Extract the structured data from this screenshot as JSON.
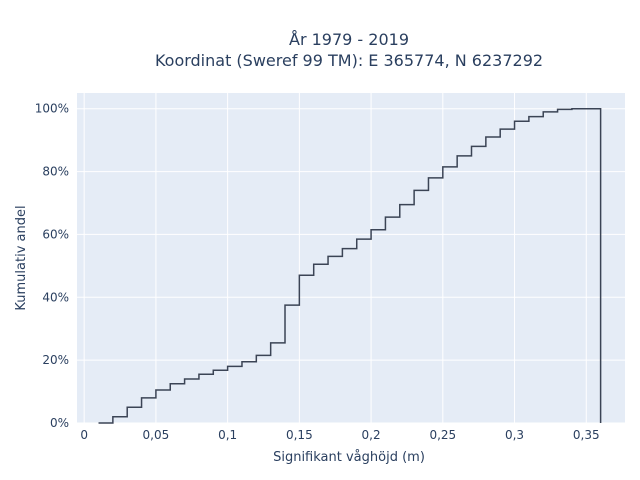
{
  "chart_data": {
    "type": "line",
    "title_line1": "År 1979 - 2019",
    "title_line2": "Koordinat (Sweref 99 TM): E 365774, N 6237292",
    "xlabel": "Signifikant våghöjd (m)",
    "ylabel": "Kumulativ andel",
    "xlim": [
      -0.005,
      0.377
    ],
    "ylim": [
      0,
      1.05
    ],
    "x_ticks": [
      0,
      0.05,
      0.1,
      0.15,
      0.2,
      0.25,
      0.3,
      0.35
    ],
    "x_tick_labels": [
      "0",
      "0,05",
      "0,1",
      "0,15",
      "0,2",
      "0,25",
      "0,3",
      "0,35"
    ],
    "y_ticks": [
      0,
      0.2,
      0.4,
      0.6,
      0.8,
      1.0
    ],
    "y_tick_labels": [
      "0%",
      "20%",
      "40%",
      "60%",
      "80%",
      "100%"
    ],
    "grid": true,
    "series": [
      {
        "color": "#3b4455",
        "step": "post",
        "x": [
          0.01,
          0.02,
          0.03,
          0.04,
          0.05,
          0.06,
          0.07,
          0.08,
          0.09,
          0.1,
          0.11,
          0.12,
          0.13,
          0.14,
          0.15,
          0.16,
          0.17,
          0.18,
          0.19,
          0.2,
          0.21,
          0.22,
          0.23,
          0.24,
          0.25,
          0.26,
          0.27,
          0.28,
          0.29,
          0.3,
          0.31,
          0.32,
          0.33,
          0.34,
          0.35,
          0.36
        ],
        "y": [
          0.0,
          0.02,
          0.05,
          0.08,
          0.105,
          0.125,
          0.14,
          0.155,
          0.168,
          0.18,
          0.195,
          0.215,
          0.255,
          0.375,
          0.47,
          0.505,
          0.53,
          0.555,
          0.585,
          0.615,
          0.655,
          0.695,
          0.74,
          0.78,
          0.815,
          0.85,
          0.88,
          0.91,
          0.935,
          0.96,
          0.975,
          0.99,
          0.998,
          1.0,
          1.0,
          0.0
        ]
      }
    ]
  }
}
